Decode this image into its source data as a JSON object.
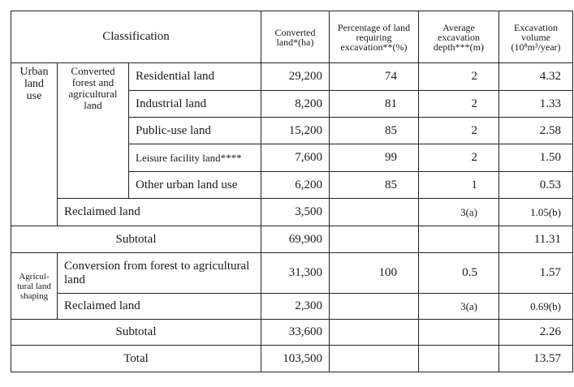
{
  "header": {
    "classification": "Classification",
    "converted_land": "Converted land*(ha)",
    "percentage": "Percentage of land requiring excavation**(%)",
    "depth": "Average excavation depth***(m)",
    "volume": "Excavation volume (10⁸m³/year)"
  },
  "groups": {
    "urban": "Urban land use",
    "converted_forest": "Converted forest and agricultural land",
    "agri": "Agricul-tural land shaping"
  },
  "rows": [
    {
      "label": "Residential land",
      "converted": "29,200",
      "pct": "74",
      "depth": "2",
      "volume": "4.32"
    },
    {
      "label": "Industrial land",
      "converted": "8,200",
      "pct": "81",
      "depth": "2",
      "volume": "1.33"
    },
    {
      "label": "Public-use land",
      "converted": "15,200",
      "pct": "85",
      "depth": "2",
      "volume": "2.58"
    },
    {
      "label": "Leisure facility land****",
      "converted": "7,600",
      "pct": "99",
      "depth": "2",
      "volume": "1.50"
    },
    {
      "label": "Other urban land use",
      "converted": "6,200",
      "pct": "85",
      "depth": "1",
      "volume": "0.53"
    },
    {
      "label": "Reclaimed land",
      "converted": "3,500",
      "pct": "",
      "depth": "3(a)",
      "volume": "1.05(b)"
    },
    {
      "label": "Subtotal",
      "converted": "69,900",
      "pct": "",
      "depth": "",
      "volume": "11.31"
    },
    {
      "label": "Conversion from forest to agricultural land",
      "converted": "31,300",
      "pct": "100",
      "depth": "0.5",
      "volume": "1.57"
    },
    {
      "label": "Reclaimed land",
      "converted": "2,300",
      "pct": "",
      "depth": "3(a)",
      "volume": "0.69(b)"
    },
    {
      "label": "Subtotal",
      "converted": "33,600",
      "pct": "",
      "depth": "",
      "volume": "2.26"
    },
    {
      "label": "Total",
      "converted": "103,500",
      "pct": "",
      "depth": "",
      "volume": "13.57"
    }
  ]
}
